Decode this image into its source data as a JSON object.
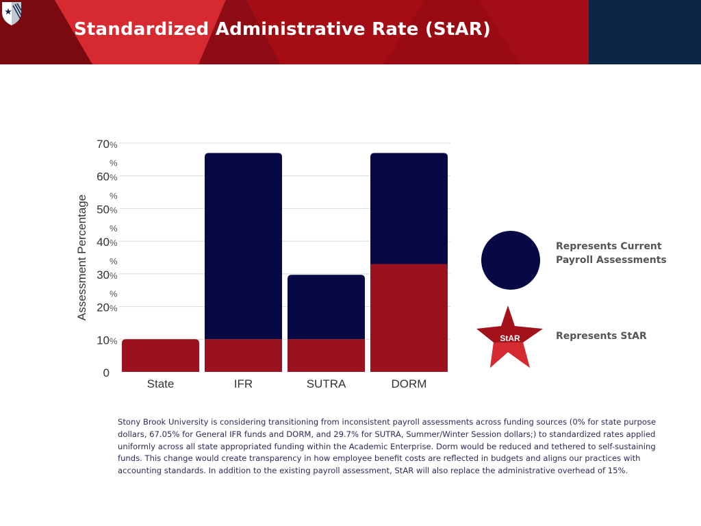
{
  "header": {
    "title": "Standardized Administrative Rate (StAR)",
    "colors": {
      "red": "#c3161d",
      "dark_red": "#7a0a10",
      "navy": "#0d2547"
    }
  },
  "logo": {
    "icon": "university-shield-icon"
  },
  "chart_data": {
    "type": "bar",
    "stacked": true,
    "categories": [
      "State",
      "IFR",
      "SUTRA",
      "DORM"
    ],
    "series": [
      {
        "name": "Represents StAR",
        "color": "#9b111e",
        "values": [
          10,
          10,
          10,
          33
        ]
      },
      {
        "name": "Represents Current Payroll Assessments",
        "color": "#080844",
        "values": [
          0,
          57,
          19.7,
          34
        ]
      }
    ],
    "totals": [
      10,
      67,
      29.7,
      67
    ],
    "ylabel": "Assessment Percentage",
    "xlabel": "",
    "ylim": [
      0,
      70
    ],
    "yticks": [
      {
        "value": 0,
        "label": "0"
      },
      {
        "value": 10,
        "label": "10"
      },
      {
        "value": 20,
        "label": "20"
      },
      {
        "value": 30,
        "label": "30"
      },
      {
        "value": 40,
        "label": "40"
      },
      {
        "value": 50,
        "label": "50"
      },
      {
        "value": 60,
        "label": "60"
      },
      {
        "value": 70,
        "label": "70"
      }
    ],
    "percent_sign": "%",
    "grid": true,
    "legend_position": "right"
  },
  "legend": {
    "current_label": "Represents Current Payroll Assessments",
    "star_label": "Represents StAR",
    "star_badge": "StAR"
  },
  "description": "Stony Brook University is considering transitioning from inconsistent payroll assessments across funding sources (0% for state purpose dollars, 67.05% for General IFR funds and DORM, and 29.7% for SUTRA, Summer/Winter Session dollars;) to standardized rates applied uniformly across all state appropriated funding within the Academic Enterprise. Dorm would be reduced and tethered to self-sustaining funds. This change would create transparency in how employee benefit costs are reflected in budgets and aligns our practices with accounting standards. In addition to the existing payroll assessment, StAR will also replace the administrative overhead of 15%."
}
